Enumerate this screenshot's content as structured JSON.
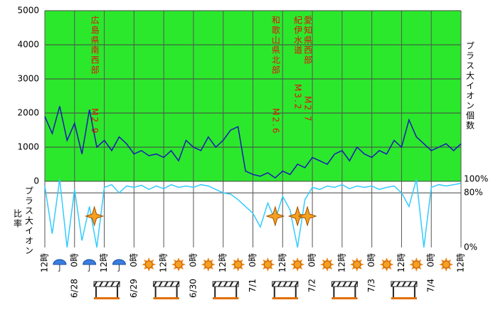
{
  "chart_data": {
    "type": "line",
    "y_axis_label": "プラス大イオン個数",
    "y2_axis_label": [
      "プラス大イオン",
      "比率"
    ],
    "x": [
      0,
      3,
      6,
      9,
      12,
      15,
      18,
      21,
      24,
      27,
      30,
      33,
      36,
      39,
      42,
      45,
      48,
      51,
      54,
      57,
      60,
      63,
      66,
      69,
      72,
      75,
      78,
      81,
      84,
      87,
      90,
      93,
      96,
      99,
      102,
      105,
      108,
      111,
      114,
      117,
      120,
      123,
      126,
      129,
      132,
      135,
      138,
      141,
      144,
      147,
      150,
      153,
      156,
      159,
      162,
      165,
      168
    ],
    "series": [
      {
        "name": "プラス大イオン個数",
        "color": "#1a1ab4",
        "values": [
          1900,
          1400,
          2200,
          1200,
          1700,
          800,
          2100,
          1000,
          1200,
          900,
          1300,
          1100,
          800,
          900,
          750,
          800,
          700,
          900,
          600,
          1200,
          1000,
          900,
          1300,
          1000,
          1200,
          1500,
          1600,
          300,
          200,
          150,
          250,
          100,
          300,
          200,
          500,
          400,
          700,
          600,
          500,
          800,
          900,
          600,
          1000,
          800,
          700,
          900,
          800,
          1200,
          1000,
          1800,
          1300,
          1100,
          900,
          1000,
          1100,
          900,
          1100
        ]
      },
      {
        "name": "プラス大イオン比率",
        "color": "#33ccff",
        "axis": "y2",
        "values": [
          90,
          20,
          100,
          0,
          85,
          10,
          60,
          0,
          88,
          92,
          80,
          90,
          88,
          91,
          85,
          90,
          86,
          92,
          88,
          90,
          88,
          92,
          90,
          85,
          80,
          78,
          70,
          60,
          50,
          30,
          65,
          40,
          75,
          55,
          0,
          70,
          88,
          85,
          90,
          88,
          92,
          86,
          90,
          88,
          90,
          85,
          88,
          90,
          80,
          60,
          100,
          0,
          88,
          92,
          90,
          92,
          94
        ]
      }
    ],
    "xlim": [
      0,
      168
    ],
    "xticks": [
      {
        "value": 0,
        "label": "12時"
      },
      {
        "value": 12,
        "label": "0時"
      },
      {
        "value": 24,
        "label": "12時"
      },
      {
        "value": 36,
        "label": "0時"
      },
      {
        "value": 48,
        "label": "12時"
      },
      {
        "value": 60,
        "label": "0時"
      },
      {
        "value": 72,
        "label": "12時"
      },
      {
        "value": 84,
        "label": "0時"
      },
      {
        "value": 96,
        "label": "12時"
      },
      {
        "value": 108,
        "label": "0時"
      },
      {
        "value": 120,
        "label": "12時"
      },
      {
        "value": 132,
        "label": "0時"
      },
      {
        "value": 144,
        "label": "12時"
      },
      {
        "value": 156,
        "label": "0時"
      },
      {
        "value": 168,
        "label": "12時"
      }
    ],
    "date_labels": [
      {
        "value": 12,
        "label": "6/28"
      },
      {
        "value": 36,
        "label": "6/29"
      },
      {
        "value": 60,
        "label": "6/30"
      },
      {
        "value": 84,
        "label": "7/1"
      },
      {
        "value": 108,
        "label": "7/2"
      },
      {
        "value": 132,
        "label": "7/3"
      },
      {
        "value": 156,
        "label": "7/4"
      }
    ],
    "ylim": [
      0,
      5000
    ],
    "yticks": [
      0,
      1000,
      2000,
      3000,
      4000,
      5000
    ],
    "y2lim": [
      0,
      100
    ],
    "y2ticks": [
      {
        "value": 0,
        "label": "0%"
      },
      {
        "value": 80,
        "label": "80%"
      },
      {
        "value": 100,
        "label": "100%"
      }
    ],
    "background": "#2ce82c",
    "events": [
      {
        "label": "広島県南西部",
        "magnitude": "M2.9",
        "x": 20
      },
      {
        "label": "和歌山県北部",
        "magnitude": "M2.6",
        "x": 93
      },
      {
        "label": "紀伊水道",
        "magnitude": "M3.2",
        "x": 102
      },
      {
        "label": "愛知県西部",
        "magnitude": "M2.7",
        "x": 106
      }
    ]
  }
}
